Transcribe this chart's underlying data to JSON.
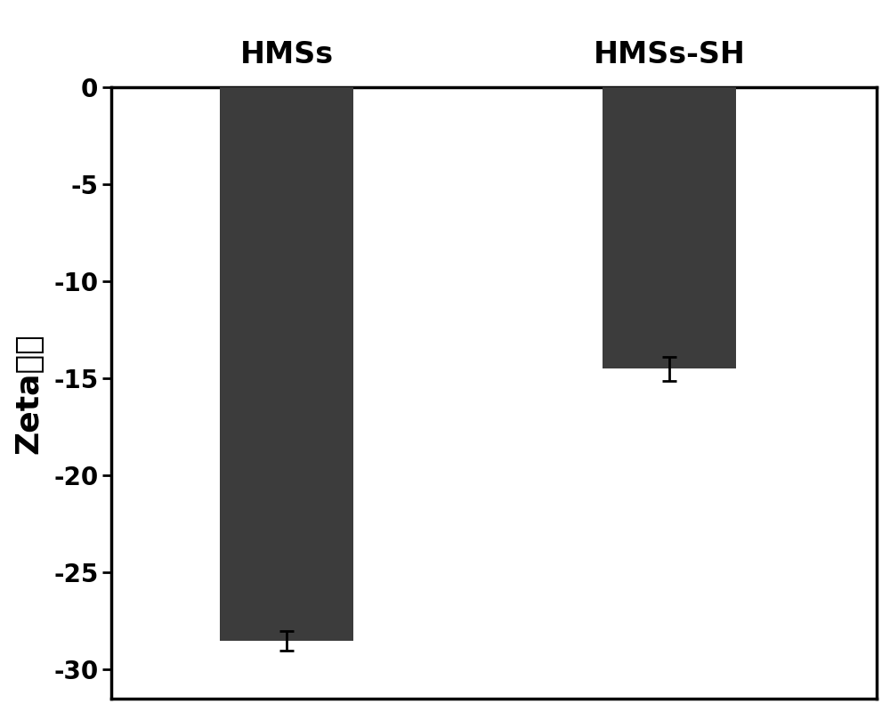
{
  "categories": [
    "HMSs",
    "HMSs-SH"
  ],
  "values": [
    -28.5,
    -14.5
  ],
  "errors": [
    0.5,
    0.6
  ],
  "bar_color": "#3c3c3c",
  "bar_width": 0.42,
  "bar_positions": [
    1.0,
    2.2
  ],
  "ylabel_latin": "Zeta",
  "ylabel_cjk": "电势",
  "ylim": [
    -31.5,
    0
  ],
  "yticks": [
    0,
    -5,
    -10,
    -15,
    -20,
    -25,
    -30
  ],
  "label_fontsize": 24,
  "tick_fontsize": 20,
  "ylabel_fontsize": 26,
  "background_color": "#ffffff",
  "xlim": [
    0.45,
    2.85
  ],
  "spine_linewidth": 2.5
}
